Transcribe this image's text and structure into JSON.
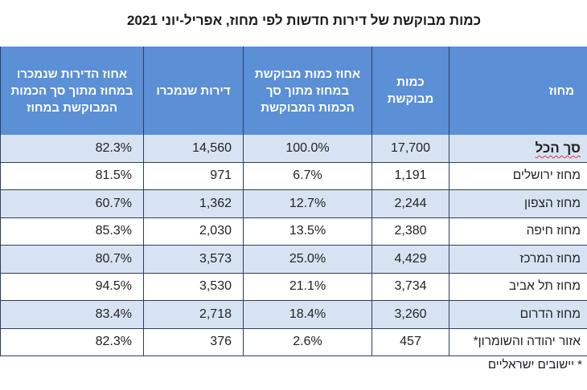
{
  "title": "כמות מבוקשת של דירות חדשות לפי מחוז, אפריל-יוני 2021",
  "headers": {
    "pct_sold": "אחוז הדירות שנמכרו במחוז מתוך סך הכמות המבוקשת במחוז",
    "sold": "דירות שנמכרו",
    "pct_demand": "אחוז כמות מבוקשת במחוז מתוך סך הכמות המבוקשת",
    "demand": "כמות מבוקשת",
    "district": "מחוז"
  },
  "rows": [
    {
      "district": "סך הכל",
      "demand": "17,700",
      "pct_demand": "100.0%",
      "sold": "14,560",
      "pct_sold": "82.3%"
    },
    {
      "district": "מחוז ירושלים",
      "demand": "1,191",
      "pct_demand": "6.7%",
      "sold": "971",
      "pct_sold": "81.5%"
    },
    {
      "district": "מחוז הצפון",
      "demand": "2,244",
      "pct_demand": "12.7%",
      "sold": "1,362",
      "pct_sold": "60.7%"
    },
    {
      "district": "מחוז חיפה",
      "demand": "2,380",
      "pct_demand": "13.5%",
      "sold": "2,030",
      "pct_sold": "85.3%"
    },
    {
      "district": "מחוז המרכז",
      "demand": "4,429",
      "pct_demand": "25.0%",
      "sold": "3,573",
      "pct_sold": "80.7%"
    },
    {
      "district": "מחוז תל אביב",
      "demand": "3,734",
      "pct_demand": "21.1%",
      "sold": "3,530",
      "pct_sold": "94.5%"
    },
    {
      "district": "מחוז הדרום",
      "demand": "3,260",
      "pct_demand": "18.4%",
      "sold": "2,718",
      "pct_sold": "83.4%"
    },
    {
      "district": "אזור יהודה והשומרון*",
      "demand": "457",
      "pct_demand": "2.6%",
      "sold": "376",
      "pct_sold": "82.3%"
    }
  ],
  "footnote": "* יישובים ישראליים",
  "colors": {
    "header_bg": "#5b8fd6",
    "shade": "#d7e3f3"
  }
}
